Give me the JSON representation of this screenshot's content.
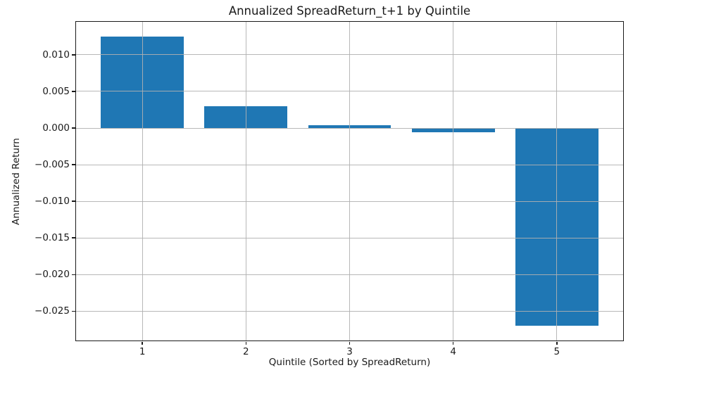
{
  "chart_data": {
    "type": "bar",
    "title": "Annualized SpreadReturn_t+1 by Quintile",
    "xlabel": "Quintile (Sorted by SpreadReturn)",
    "ylabel": "Annualized Return",
    "categories": [
      "1",
      "2",
      "3",
      "4",
      "5"
    ],
    "x_positions": [
      1,
      2,
      3,
      4,
      5
    ],
    "values": [
      0.0125,
      0.003,
      0.0004,
      -0.0006,
      -0.027
    ],
    "bar_width": 0.8,
    "bar_color": "#1f77b4",
    "grid": true,
    "grid_color": "rgba(176,176,176,0.9)",
    "legend_position": "none",
    "xlim": [
      0.36,
      5.64
    ],
    "ylim": [
      -0.029,
      0.0145
    ],
    "yticks": [
      0.01,
      0.005,
      0.0,
      -0.005,
      -0.01,
      -0.015,
      -0.02,
      -0.025
    ],
    "ytick_labels": [
      "0.010",
      "0.005",
      "0.000",
      "−0.005",
      "−0.010",
      "−0.015",
      "−0.020",
      "−0.025"
    ],
    "xticks": [
      1,
      2,
      3,
      4,
      5
    ],
    "xtick_labels": [
      "1",
      "2",
      "3",
      "4",
      "5"
    ]
  }
}
